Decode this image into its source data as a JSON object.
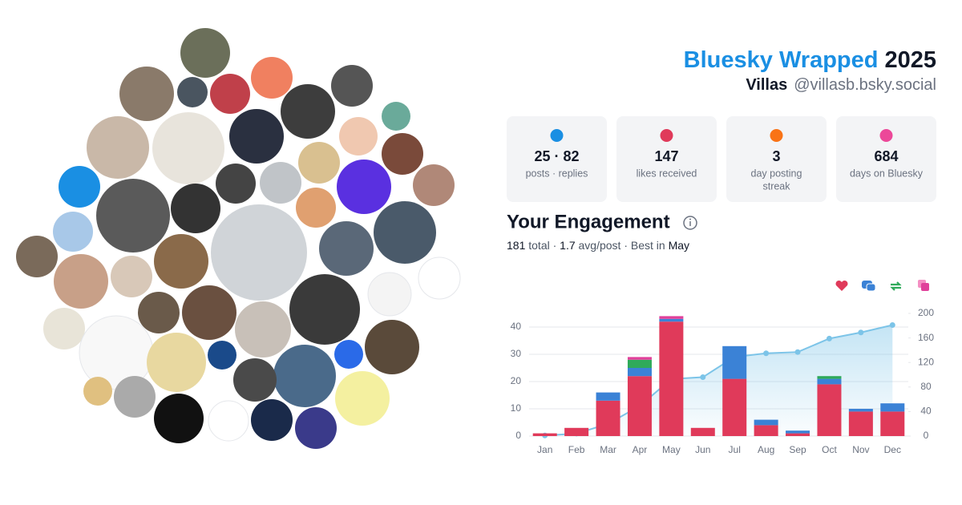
{
  "header": {
    "title": "Bluesky Wrapped",
    "year": "2025",
    "name": "Villas",
    "handle": "@villasb.bsky.social"
  },
  "stats": [
    {
      "value": "25 · 82",
      "label": "posts · replies"
    },
    {
      "value": "147",
      "label": "likes received"
    },
    {
      "value": "3",
      "label": [
        "day posting",
        "streak"
      ]
    },
    {
      "value": "684",
      "label": "days on Bluesky"
    }
  ],
  "engagement": {
    "title": "Your Engagement",
    "summary": [
      "181",
      " total · ",
      "1.7",
      " avg/post · Best in ",
      "May"
    ]
  },
  "chart_data": {
    "type": "bar",
    "stacked": true,
    "categories": [
      "Jan",
      "Feb",
      "Mar",
      "Apr",
      "May",
      "Jun",
      "Jul",
      "Aug",
      "Sep",
      "Oct",
      "Nov",
      "Dec"
    ],
    "series": [
      {
        "color": "#e03a5a",
        "values": [
          1,
          3,
          13,
          22,
          42,
          3,
          21,
          4,
          1,
          19,
          9,
          9
        ]
      },
      {
        "color": "#3b82d6",
        "values": [
          0,
          0,
          3,
          3,
          1,
          0,
          12,
          2,
          1,
          2,
          1,
          3
        ]
      },
      {
        "color": "#2faa5a",
        "values": [
          0,
          0,
          0,
          3,
          0,
          0,
          0,
          0,
          0,
          1,
          0,
          0
        ]
      },
      {
        "color": "#e0409a",
        "values": [
          0,
          0,
          0,
          1,
          1,
          0,
          0,
          0,
          0,
          0,
          0,
          0
        ]
      },
      {
        "type": "area",
        "axis": "y2",
        "color": "#7cc4e8",
        "values": [
          1,
          4,
          20,
          49,
          93,
          96,
          129,
          135,
          137,
          159,
          169,
          181
        ]
      }
    ],
    "ylim": [
      0,
      45
    ],
    "yticks": [
      0,
      10,
      20,
      30,
      40
    ],
    "y2lim": [
      0,
      200
    ],
    "y2ticks": [
      0,
      40,
      80,
      120,
      160,
      200
    ],
    "grid": true
  }
}
